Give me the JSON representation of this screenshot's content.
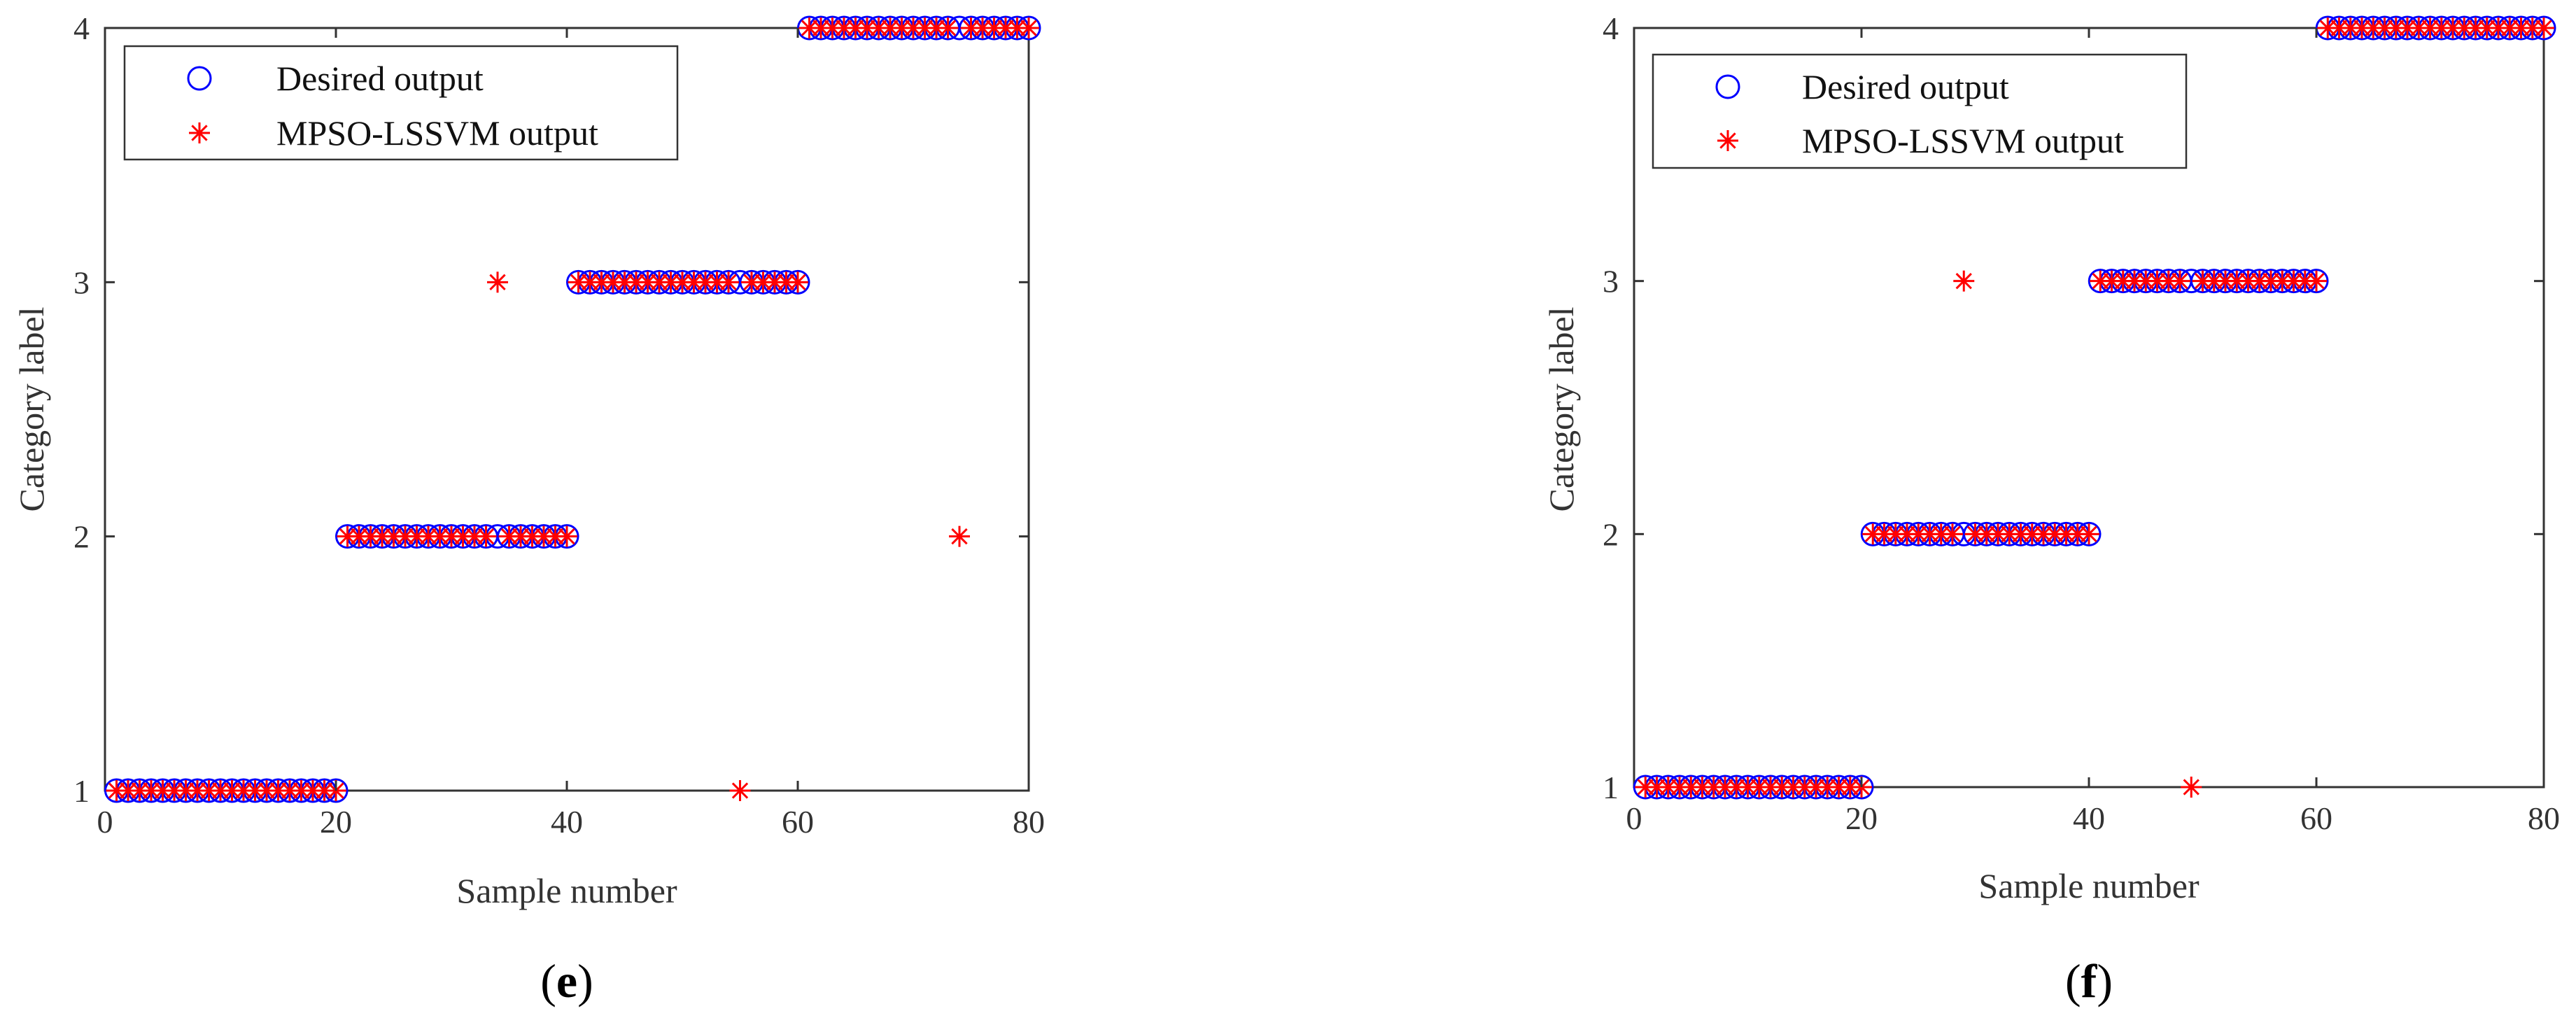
{
  "chart_data": [
    {
      "type": "scatter",
      "subcaption": "e",
      "xlabel": "Sample number",
      "ylabel": "Category label",
      "xlim": [
        0,
        80
      ],
      "ylim": [
        1,
        4
      ],
      "xticks": [
        "0",
        "20",
        "40",
        "60",
        "80"
      ],
      "yticks": [
        "1",
        "2",
        "3",
        "4"
      ],
      "grid": false,
      "legend_position": "top-left",
      "series": [
        {
          "name": "Desired output",
          "marker": "circle",
          "color": "#0000ff",
          "segments": [
            {
              "x_from": 1,
              "x_to": 20,
              "y": 1
            },
            {
              "x_from": 21,
              "x_to": 40,
              "y": 2
            },
            {
              "x_from": 41,
              "x_to": 60,
              "y": 3
            },
            {
              "x_from": 61,
              "x_to": 80,
              "y": 4
            }
          ]
        },
        {
          "name": "MPSO-LSSVM output",
          "marker": "asterisk",
          "color": "#ff0000",
          "same_as_desired_except": [
            {
              "x": 34,
              "y": 3
            },
            {
              "x": 55,
              "y": 1
            },
            {
              "x": 74,
              "y": 2
            }
          ]
        }
      ]
    },
    {
      "type": "scatter",
      "subcaption": "f",
      "xlabel": "Sample number",
      "ylabel": "Category label",
      "xlim": [
        0,
        80
      ],
      "ylim": [
        1,
        4
      ],
      "xticks": [
        "0",
        "20",
        "40",
        "60",
        "80"
      ],
      "yticks": [
        "1",
        "2",
        "3",
        "4"
      ],
      "grid": false,
      "legend_position": "top-left",
      "series": [
        {
          "name": "Desired output",
          "marker": "circle",
          "color": "#0000ff",
          "segments": [
            {
              "x_from": 1,
              "x_to": 20,
              "y": 1
            },
            {
              "x_from": 21,
              "x_to": 40,
              "y": 2
            },
            {
              "x_from": 41,
              "x_to": 60,
              "y": 3
            },
            {
              "x_from": 61,
              "x_to": 80,
              "y": 4
            }
          ]
        },
        {
          "name": "MPSO-LSSVM output",
          "marker": "asterisk",
          "color": "#ff0000",
          "same_as_desired_except": [
            {
              "x": 29,
              "y": 3
            },
            {
              "x": 49,
              "y": 1
            }
          ]
        }
      ]
    }
  ]
}
